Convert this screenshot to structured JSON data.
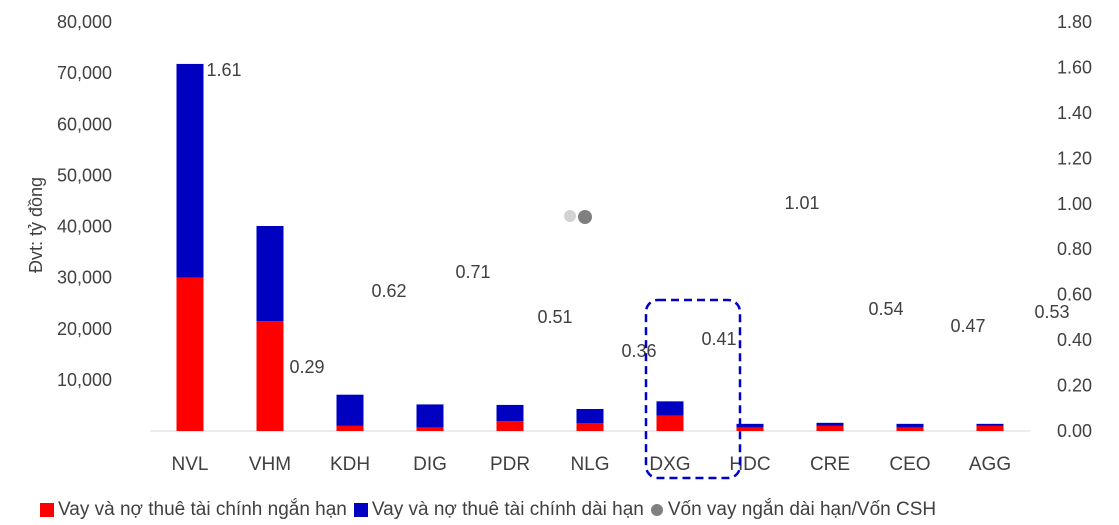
{
  "chart_data": {
    "type": "bar",
    "stacked": true,
    "categories": [
      "NVL",
      "VHM",
      "KDH",
      "DIG",
      "PDR",
      "NLG",
      "DXG",
      "HDC",
      "CRE",
      "CEO",
      "AGG"
    ],
    "series": [
      {
        "name": "Vay và nợ thuê tài chính ngắn hạn",
        "color": "#ff0000",
        "values": [
          30000,
          21500,
          1000,
          700,
          1900,
          1500,
          3000,
          700,
          1000,
          700,
          1000
        ]
      },
      {
        "name": "Vay và nợ thuê tài chính dài hạn",
        "color": "#0000c0",
        "values": [
          41800,
          18600,
          6100,
          4500,
          3200,
          2800,
          2800,
          700,
          600,
          700,
          400
        ]
      }
    ],
    "ratio_series": {
      "name": "Vốn vay ngắn dài hạn/Vốn CSH",
      "color": "#808080",
      "labels": [
        "1.61",
        "0.29",
        "0.62",
        "0.71",
        "0.51",
        "0.36",
        "0.41",
        "1.01",
        "0.54",
        "0.47",
        "0.53"
      ]
    },
    "ylabel": "Đvt: tỷ đồng",
    "ylim": [
      0,
      80000
    ],
    "y_ticks": [
      "",
      "10,000",
      "20,000",
      "30,000",
      "40,000",
      "50,000",
      "60,000",
      "70,000",
      "80,000"
    ],
    "y2lim": [
      0,
      1.8
    ],
    "y2_ticks": [
      "0.00",
      "0.20",
      "0.40",
      "0.60",
      "0.80",
      "1.00",
      "1.20",
      "1.40",
      "1.60",
      "1.80"
    ],
    "highlight_category": "DXG",
    "legend_position": "bottom",
    "grid": false
  }
}
